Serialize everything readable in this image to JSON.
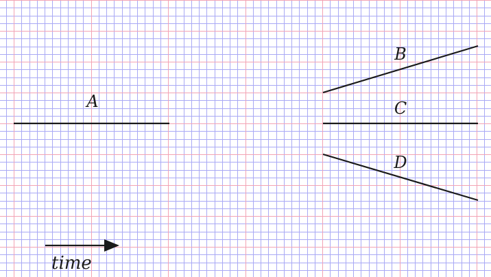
{
  "graph_paper": {
    "minor_line_color": "#a9a9f5",
    "major_line_color": "#f3a3b4",
    "background_color": "#ffffff"
  },
  "diagram": {
    "line_color": "#1a1a1a",
    "segments": [
      {
        "id": "A",
        "label": "A"
      },
      {
        "id": "B",
        "label": "B"
      },
      {
        "id": "C",
        "label": "C"
      },
      {
        "id": "D",
        "label": "D"
      }
    ],
    "time_arrow": {
      "label": "time",
      "direction": "right"
    }
  }
}
